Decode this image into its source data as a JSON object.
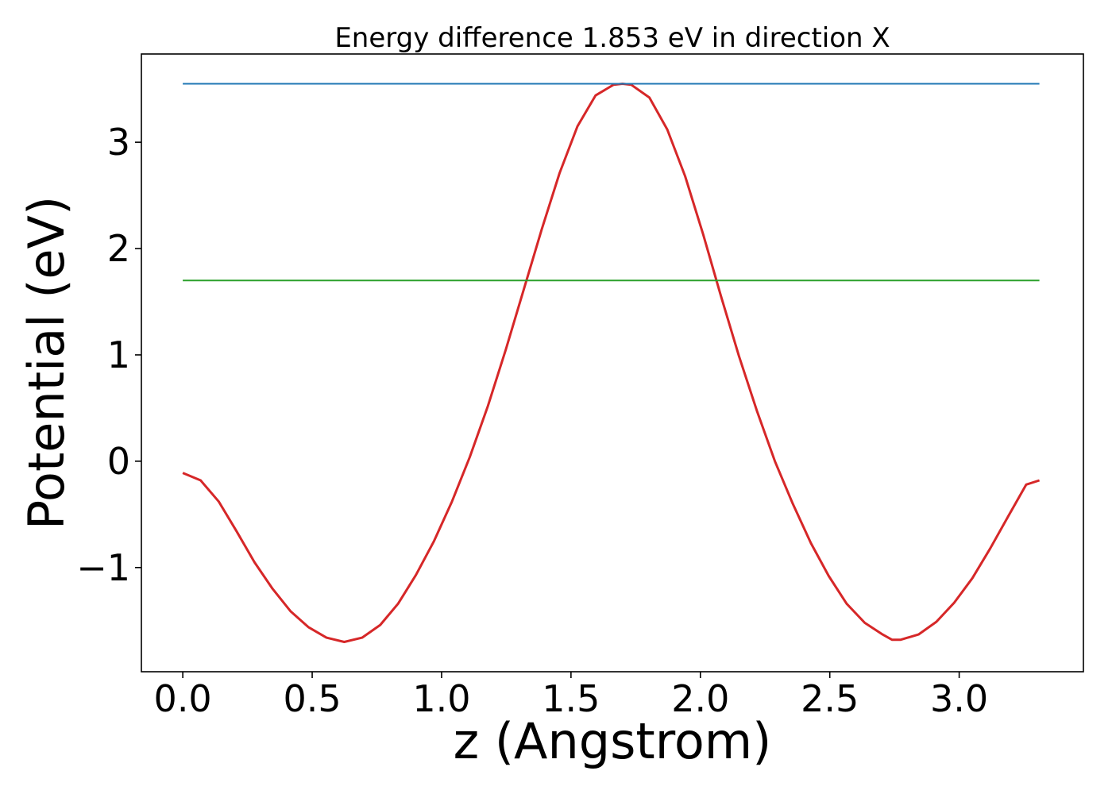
{
  "chart_data": {
    "type": "line",
    "title": "Energy difference 1.853 eV in direction X",
    "xlabel": "z (Angstrom)",
    "ylabel": "Potential (eV)",
    "xlim": [
      -0.16,
      3.48
    ],
    "ylim": [
      -1.98,
      3.83
    ],
    "xticks": [
      0.0,
      0.5,
      1.0,
      1.5,
      2.0,
      2.5,
      3.0
    ],
    "xtick_labels": [
      "0.0",
      "0.5",
      "1.0",
      "1.5",
      "2.0",
      "2.5",
      "3.0"
    ],
    "yticks": [
      -1,
      0,
      1,
      2,
      3
    ],
    "ytick_labels": [
      "−1",
      "0",
      "1",
      "2",
      "3"
    ],
    "grid": false,
    "legend": "none",
    "series": [
      {
        "color": "#d62728",
        "x": [
          0.0,
          0.069,
          0.139,
          0.208,
          0.277,
          0.347,
          0.416,
          0.485,
          0.555,
          0.624,
          0.693,
          0.763,
          0.832,
          0.901,
          0.971,
          1.04,
          1.109,
          1.179,
          1.248,
          1.317,
          1.387,
          1.456,
          1.525,
          1.595,
          1.664,
          1.699,
          1.733,
          1.803,
          1.872,
          1.941,
          2.011,
          2.08,
          2.149,
          2.219,
          2.288,
          2.357,
          2.427,
          2.496,
          2.565,
          2.635,
          2.704,
          2.741,
          2.773,
          2.843,
          2.912,
          2.981,
          3.051,
          3.12,
          3.189,
          3.259,
          3.31
        ],
        "y": [
          -0.11,
          -0.18,
          -0.38,
          -0.66,
          -0.95,
          -1.2,
          -1.41,
          -1.56,
          -1.66,
          -1.7,
          -1.66,
          -1.54,
          -1.34,
          -1.07,
          -0.75,
          -0.38,
          0.04,
          0.52,
          1.05,
          1.61,
          2.18,
          2.71,
          3.15,
          3.44,
          3.54,
          3.55,
          3.54,
          3.42,
          3.12,
          2.68,
          2.13,
          1.55,
          0.99,
          0.47,
          0.0,
          -0.4,
          -0.77,
          -1.08,
          -1.34,
          -1.52,
          -1.63,
          -1.68,
          -1.68,
          -1.63,
          -1.51,
          -1.33,
          -1.1,
          -0.82,
          -0.52,
          -0.22,
          -0.18
        ]
      },
      {
        "color": "#1f77b4",
        "x": [
          0.0,
          3.31
        ],
        "y": [
          3.55,
          3.55
        ]
      },
      {
        "color": "#2ca02c",
        "x": [
          0.0,
          3.31
        ],
        "y": [
          1.7,
          1.7
        ]
      }
    ]
  }
}
